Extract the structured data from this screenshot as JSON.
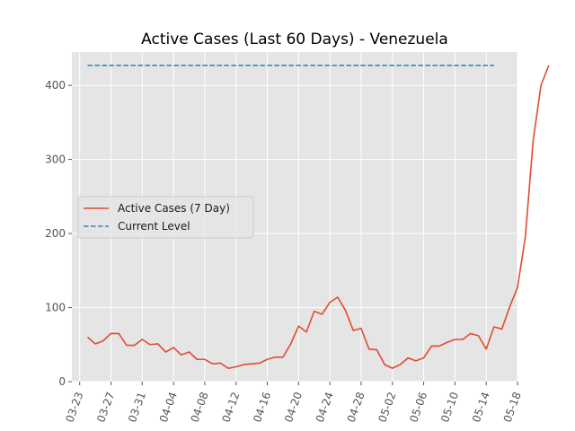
{
  "chart_data": {
    "type": "line",
    "title": "Active Cases (Last 60 Days) - Venezuela",
    "xlabel": "",
    "ylabel": "",
    "grid": true,
    "legend_position": "center-left",
    "xlim": [
      "2020-03-22",
      "2020-05-18"
    ],
    "ylim": [
      0,
      445
    ],
    "x_ticks": [
      "03-23",
      "03-27",
      "03-31",
      "04-04",
      "04-08",
      "04-12",
      "04-16",
      "04-20",
      "04-24",
      "04-28",
      "05-02",
      "05-06",
      "05-10",
      "05-14",
      "05-18"
    ],
    "y_ticks": [
      0,
      100,
      200,
      300,
      400
    ],
    "series": [
      {
        "name": "Active Cases (7 Day)",
        "style": "solid",
        "color": "#e24a33",
        "start_date": "2020-03-24",
        "values": [
          60,
          51,
          55,
          65,
          65,
          49,
          49,
          57,
          50,
          51,
          40,
          46,
          36,
          40,
          30,
          30,
          24,
          25,
          18,
          20,
          23,
          24,
          25,
          30,
          33,
          33,
          51,
          75,
          67,
          95,
          91,
          107,
          114,
          96,
          69,
          72,
          44,
          43,
          23,
          18,
          23,
          32,
          28,
          32,
          48,
          48,
          53,
          57,
          57,
          65,
          62,
          44,
          74,
          71,
          101,
          127,
          195,
          325,
          400,
          427
        ]
      },
      {
        "name": "Current Level",
        "style": "dashed",
        "color": "#348abd",
        "x": [
          "2020-03-24",
          "2020-05-15"
        ],
        "values": [
          427,
          427
        ]
      }
    ]
  },
  "colors": {
    "plot_background": "#e5e5e5",
    "grid": "#ffffff"
  }
}
